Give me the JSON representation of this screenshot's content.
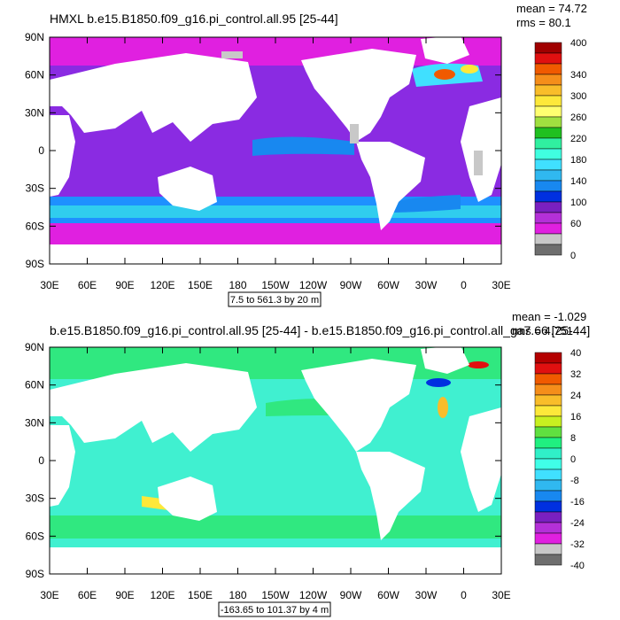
{
  "chart_data": [
    {
      "type": "heatmap",
      "title": "HMXL b.e15.B1850.f09_g16.pi_control.all.95 [25-44]",
      "stats": [
        "mean = 74.72",
        "rms = 80.1"
      ],
      "range_label": "7.5 to 561.3 by 20 m",
      "lat_ticks": [
        "90N",
        "60N",
        "30N",
        "0",
        "30S",
        "60S",
        "90S"
      ],
      "lon_ticks": [
        "30E",
        "60E",
        "90E",
        "120E",
        "150E",
        "180",
        "150W",
        "120W",
        "90W",
        "60W",
        "30W",
        "0",
        "30E"
      ],
      "colorbar": {
        "labels": [
          "400",
          "340",
          "300",
          "260",
          "220",
          "180",
          "140",
          "100",
          "60",
          "0"
        ],
        "colors": [
          "#a00000",
          "#e01010",
          "#f05a00",
          "#f58e1a",
          "#f9bd2a",
          "#fde83a",
          "#ffff70",
          "#a0e040",
          "#20c020",
          "#30f0a0",
          "#40ffe0",
          "#40e0ff",
          "#30b8f0",
          "#1888f0",
          "#0030e0",
          "#7a20c0",
          "#b430d8",
          "#e020e0",
          "#c8c8c8",
          "#6e6e6e"
        ]
      },
      "dominant_colors": {
        "ocean": "#8a2be2",
        "subpolar": "#e020e0",
        "southern": "#1e90ff",
        "land": "#ffffff"
      }
    },
    {
      "type": "heatmap",
      "title": "b.e15.B1850.f09_g16.pi_control.all.95 [25-44] - b.e15.B1850.f09_g16.pi_control.all_ga7.66 [25-44]",
      "stats": [
        "mean = -1.029",
        "rms = 4.751"
      ],
      "range_label": "-163.65 to 101.37 by 4 m",
      "lat_ticks": [
        "90N",
        "60N",
        "30N",
        "0",
        "30S",
        "60S",
        "90S"
      ],
      "lon_ticks": [
        "30E",
        "60E",
        "90E",
        "120E",
        "150E",
        "180",
        "150W",
        "120W",
        "90W",
        "60W",
        "30W",
        "0",
        "30E"
      ],
      "colorbar": {
        "labels": [
          "40",
          "32",
          "24",
          "16",
          "8",
          "0",
          "-8",
          "-16",
          "-24",
          "-32",
          "-40"
        ],
        "colors": [
          "#b40000",
          "#e01010",
          "#f05a00",
          "#f58e1a",
          "#f9bd2a",
          "#fde83a",
          "#c8f020",
          "#60e040",
          "#20f080",
          "#30f0c8",
          "#40ffe8",
          "#40e0ff",
          "#30b8f0",
          "#1888f0",
          "#0030e0",
          "#7a20c0",
          "#b430d8",
          "#e020e0",
          "#c8c8c8",
          "#6e6e6e"
        ]
      },
      "dominant_colors": {
        "ocean": "#40f0d0",
        "band": "#30e880",
        "land": "#ffffff"
      }
    }
  ]
}
